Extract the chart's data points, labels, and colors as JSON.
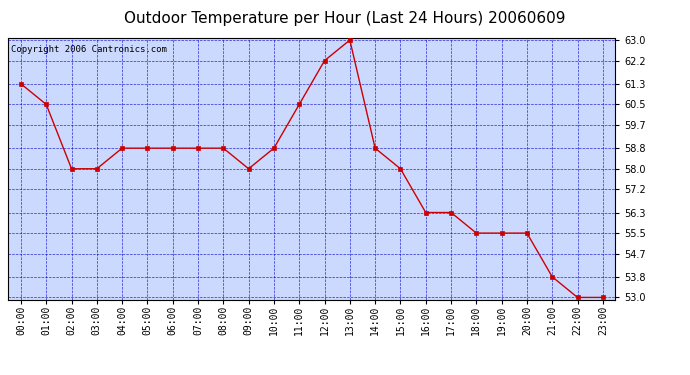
{
  "title": "Outdoor Temperature per Hour (Last 24 Hours) 20060609",
  "copyright_text": "Copyright 2006 Cantronics.com",
  "hours": [
    "00:00",
    "01:00",
    "02:00",
    "03:00",
    "04:00",
    "05:00",
    "06:00",
    "07:00",
    "08:00",
    "09:00",
    "10:00",
    "11:00",
    "12:00",
    "13:00",
    "14:00",
    "15:00",
    "16:00",
    "17:00",
    "18:00",
    "19:00",
    "20:00",
    "21:00",
    "22:00",
    "23:00"
  ],
  "temps": [
    61.3,
    60.5,
    58.0,
    58.0,
    58.8,
    58.8,
    58.8,
    58.8,
    58.8,
    58.0,
    58.8,
    60.5,
    62.2,
    63.0,
    58.8,
    58.0,
    56.3,
    56.3,
    55.5,
    55.5,
    55.5,
    53.8,
    53.0,
    53.0
  ],
  "yticks": [
    53.0,
    53.8,
    54.7,
    55.5,
    56.3,
    57.2,
    58.0,
    58.8,
    59.7,
    60.5,
    61.3,
    62.2,
    63.0
  ],
  "ymin": 52.9,
  "ymax": 63.1,
  "line_color": "#cc0000",
  "marker_color": "#cc0000",
  "bg_color": "#ccd9ff",
  "grid_color": "#0000cc",
  "title_fontsize": 11,
  "copyright_fontsize": 6.5,
  "tick_fontsize": 7,
  "ytick_fontsize": 7
}
